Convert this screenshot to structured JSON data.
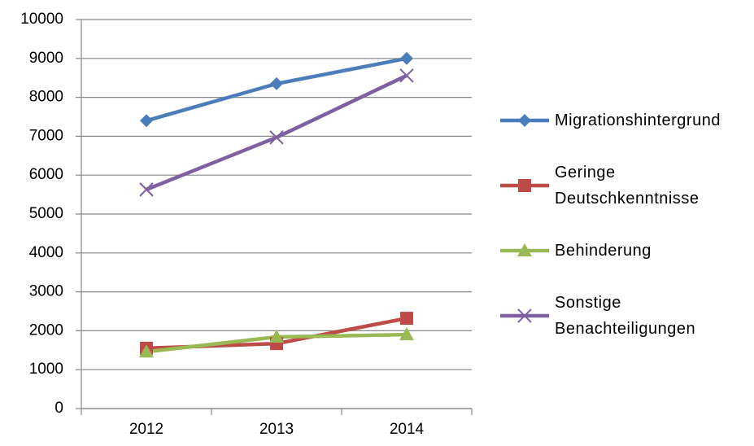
{
  "chart_data": {
    "type": "line",
    "categories": [
      "2012",
      "2013",
      "2014"
    ],
    "series": [
      {
        "name": "Migrationshintergrund",
        "color": "#4a7ebb",
        "marker": "diamond",
        "values": [
          7400,
          8350,
          9000
        ]
      },
      {
        "name": "Geringe Deutschkenntnisse",
        "color": "#be4b48",
        "marker": "square",
        "values": [
          1550,
          1670,
          2320
        ]
      },
      {
        "name": "Behinderung",
        "color": "#98b954",
        "marker": "triangle",
        "values": [
          1460,
          1840,
          1900
        ]
      },
      {
        "name": "Sonstige Benachteiligungen",
        "color": "#7d60a0",
        "marker": "x",
        "values": [
          5630,
          6970,
          8560
        ]
      }
    ],
    "ylim": [
      0,
      10000
    ],
    "yticks": [
      0,
      1000,
      2000,
      3000,
      4000,
      5000,
      6000,
      7000,
      8000,
      9000,
      10000
    ],
    "grid": true,
    "legend": "right"
  }
}
